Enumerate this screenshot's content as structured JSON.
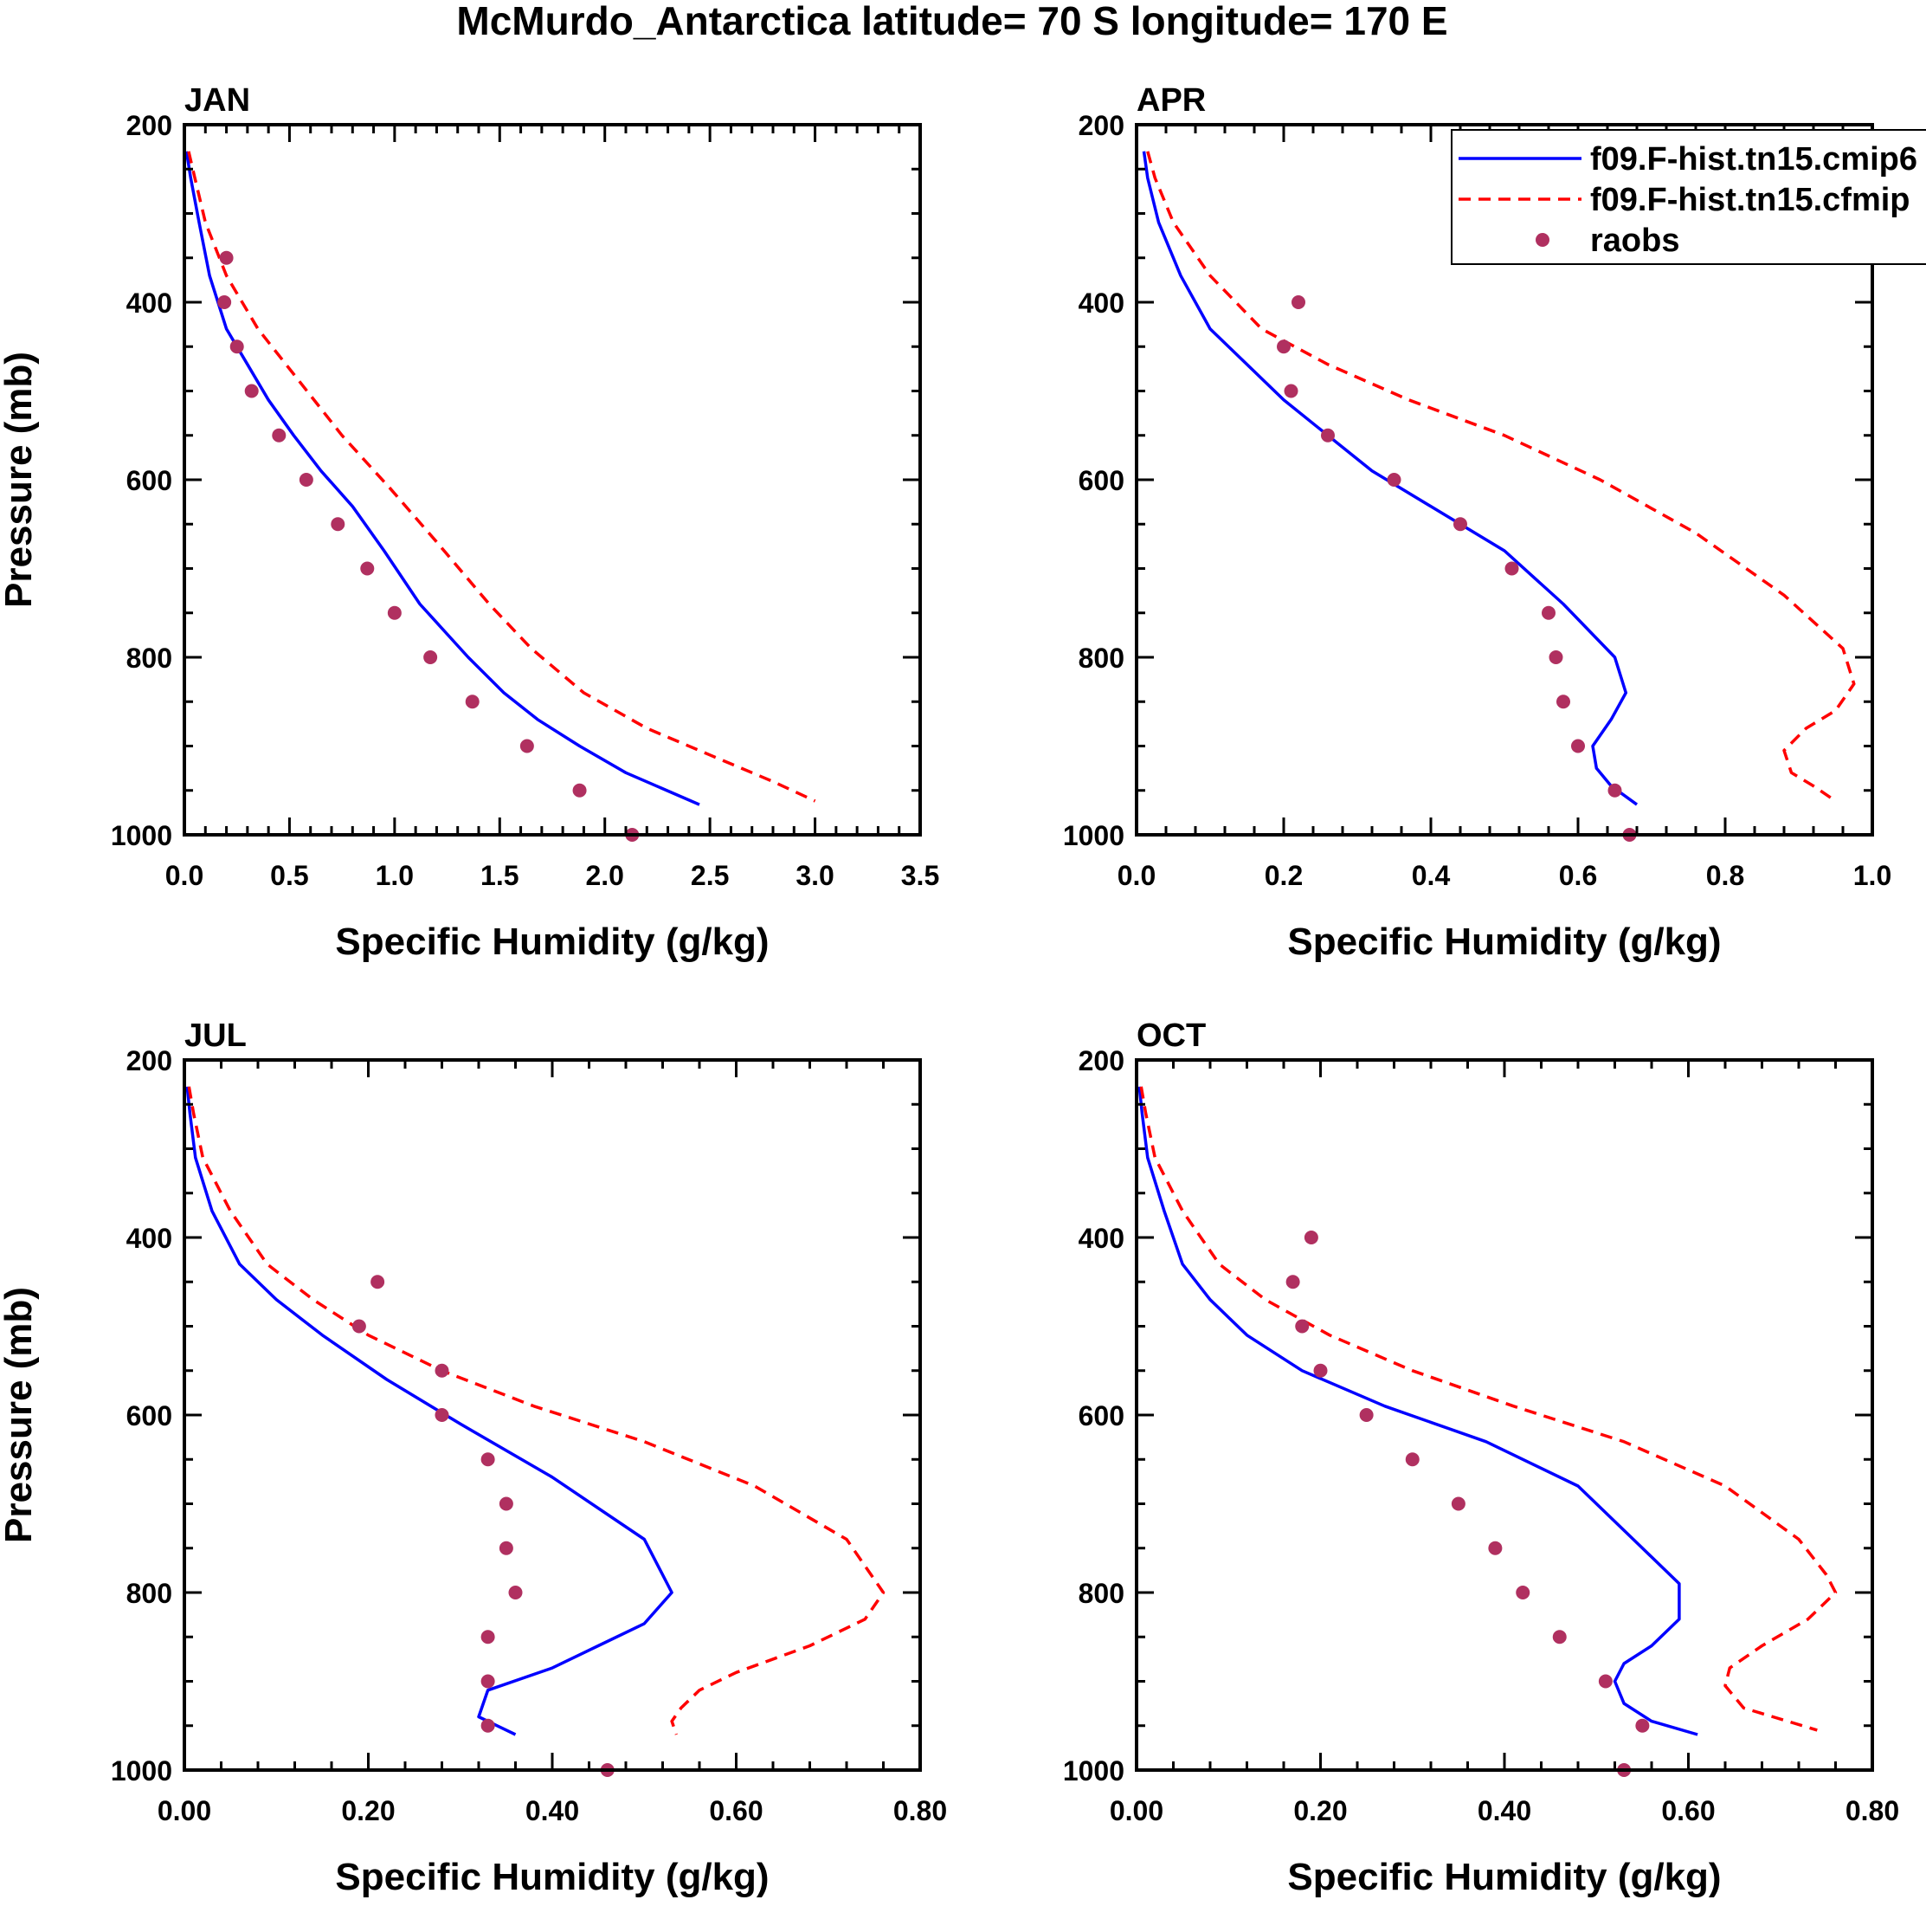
{
  "title": "McMurdo_Antarctica  latitude= 70 S longitude= 170 E",
  "colors": {
    "model_a": "#0000ff",
    "model_b": "#ff0000",
    "raobs": "#b03060",
    "frame": "#000000"
  },
  "legend": [
    {
      "label": "f09.F-hist.tn15.cmip6",
      "style": "solid-line",
      "color": "#0000ff"
    },
    {
      "label": "f09.F-hist.tn15.cfmip",
      "style": "dashed-line",
      "color": "#ff0000"
    },
    {
      "label": "raobs",
      "style": "marker",
      "color": "#b03060"
    }
  ],
  "chart_data": [
    {
      "type": "line",
      "panel": "JAN",
      "title": "JAN",
      "xlabel": "Specific Humidity (g/kg)",
      "ylabel": "Pressure (mb)",
      "xlim": [
        0,
        3.5
      ],
      "ylim": [
        200,
        1000
      ],
      "y_inverted": false,
      "xticks": [
        0,
        0.5,
        1.0,
        1.5,
        2.0,
        2.5,
        3.0,
        3.5
      ],
      "xtick_labels": [
        "0.0",
        "0.5",
        "1.0",
        "1.5",
        "2.0",
        "2.5",
        "3.0",
        "3.5"
      ],
      "yticks": [
        200,
        400,
        600,
        800,
        1000
      ],
      "ytick_labels": [
        "200",
        "400",
        "600",
        "800",
        "1000"
      ],
      "series": [
        {
          "name": "f09.F-hist.tn15.cmip6",
          "style": "solid",
          "x": [
            0.01,
            0.03,
            0.07,
            0.12,
            0.2,
            0.3,
            0.4,
            0.52,
            0.65,
            0.8,
            0.95,
            1.12,
            1.35,
            1.52,
            1.68,
            1.88,
            2.1,
            2.45
          ],
          "y": [
            230,
            260,
            310,
            370,
            430,
            470,
            510,
            550,
            590,
            630,
            680,
            740,
            800,
            840,
            870,
            900,
            930,
            966
          ]
        },
        {
          "name": "f09.F-hist.tn15.cfmip",
          "style": "dashed",
          "x": [
            0.02,
            0.05,
            0.1,
            0.2,
            0.35,
            0.55,
            0.75,
            0.98,
            1.2,
            1.45,
            1.65,
            1.9,
            2.2,
            2.5,
            2.8,
            3.0
          ],
          "y": [
            230,
            260,
            310,
            370,
            430,
            490,
            550,
            610,
            670,
            740,
            790,
            840,
            880,
            910,
            940,
            962
          ]
        },
        {
          "name": "raobs",
          "style": "marker",
          "x": [
            0.2,
            0.19,
            0.25,
            0.32,
            0.45,
            0.58,
            0.73,
            0.87,
            1.0,
            1.17,
            1.37,
            1.63,
            1.88,
            2.13
          ],
          "y": [
            350,
            400,
            450,
            500,
            550,
            600,
            650,
            700,
            750,
            800,
            850,
            900,
            950,
            1000
          ]
        }
      ]
    },
    {
      "type": "line",
      "panel": "APR",
      "title": "APR",
      "xlabel": "Specific Humidity (g/kg)",
      "ylabel": "",
      "xlim": [
        0,
        1.0
      ],
      "ylim": [
        200,
        1000
      ],
      "xticks": [
        0,
        0.2,
        0.4,
        0.6,
        0.8,
        1.0
      ],
      "xtick_labels": [
        "0.0",
        "0.2",
        "0.4",
        "0.6",
        "0.8",
        "1.0"
      ],
      "yticks": [
        200,
        400,
        600,
        800,
        1000
      ],
      "ytick_labels": [
        "200",
        "400",
        "600",
        "800",
        "1000"
      ],
      "series": [
        {
          "name": "f09.F-hist.tn15.cmip6",
          "style": "solid",
          "x": [
            0.01,
            0.015,
            0.03,
            0.06,
            0.1,
            0.15,
            0.2,
            0.26,
            0.32,
            0.4,
            0.5,
            0.58,
            0.65,
            0.665,
            0.645,
            0.62,
            0.625,
            0.645,
            0.68
          ],
          "y": [
            230,
            260,
            310,
            370,
            430,
            470,
            510,
            550,
            590,
            630,
            680,
            740,
            800,
            840,
            870,
            900,
            925,
            945,
            966
          ]
        },
        {
          "name": "f09.F-hist.tn15.cfmip",
          "style": "dashed",
          "x": [
            0.015,
            0.025,
            0.05,
            0.1,
            0.17,
            0.26,
            0.37,
            0.5,
            0.63,
            0.76,
            0.88,
            0.96,
            0.975,
            0.95,
            0.91,
            0.88,
            0.89,
            0.92,
            0.95
          ],
          "y": [
            230,
            260,
            310,
            370,
            430,
            470,
            510,
            550,
            600,
            660,
            730,
            790,
            830,
            860,
            880,
            905,
            930,
            945,
            962
          ]
        },
        {
          "name": "raobs",
          "style": "marker",
          "x": [
            0.22,
            0.2,
            0.21,
            0.26,
            0.35,
            0.44,
            0.51,
            0.56,
            0.57,
            0.58,
            0.6,
            0.65,
            0.67
          ],
          "y": [
            400,
            450,
            500,
            550,
            600,
            650,
            700,
            750,
            800,
            850,
            900,
            950,
            1000
          ]
        }
      ]
    },
    {
      "type": "line",
      "panel": "JUL",
      "title": "JUL",
      "xlabel": "Specific Humidity (g/kg)",
      "ylabel": "Pressure (mb)",
      "xlim": [
        0,
        0.8
      ],
      "ylim": [
        200,
        1000
      ],
      "xticks": [
        0,
        0.2,
        0.4,
        0.6,
        0.8
      ],
      "xtick_labels": [
        "0.00",
        "0.20",
        "0.40",
        "0.60",
        "0.80"
      ],
      "yticks": [
        200,
        400,
        600,
        800,
        1000
      ],
      "ytick_labels": [
        "200",
        "400",
        "600",
        "800",
        "1000"
      ],
      "series": [
        {
          "name": "f09.F-hist.tn15.cmip6",
          "style": "solid",
          "x": [
            0.003,
            0.006,
            0.012,
            0.03,
            0.06,
            0.1,
            0.15,
            0.22,
            0.3,
            0.4,
            0.5,
            0.53,
            0.5,
            0.45,
            0.4,
            0.33,
            0.32,
            0.34,
            0.36
          ],
          "y": [
            230,
            260,
            310,
            370,
            430,
            470,
            510,
            560,
            610,
            670,
            740,
            800,
            835,
            860,
            885,
            910,
            940,
            950,
            960
          ]
        },
        {
          "name": "f09.F-hist.tn15.cfmip",
          "style": "dashed",
          "x": [
            0.005,
            0.01,
            0.02,
            0.05,
            0.09,
            0.14,
            0.2,
            0.28,
            0.38,
            0.5,
            0.62,
            0.72,
            0.76,
            0.74,
            0.68,
            0.6,
            0.56,
            0.54,
            0.53,
            0.535
          ],
          "y": [
            230,
            260,
            310,
            370,
            430,
            470,
            510,
            550,
            590,
            630,
            680,
            740,
            800,
            830,
            860,
            890,
            910,
            930,
            945,
            960
          ]
        },
        {
          "name": "raobs",
          "style": "marker",
          "x": [
            0.21,
            0.19,
            0.28,
            0.28,
            0.33,
            0.35,
            0.35,
            0.36,
            0.33,
            0.33,
            0.33,
            0.46
          ],
          "y": [
            450,
            500,
            550,
            600,
            650,
            700,
            750,
            800,
            850,
            900,
            950,
            1000
          ]
        }
      ]
    },
    {
      "type": "line",
      "panel": "OCT",
      "title": "OCT",
      "xlabel": "Specific Humidity (g/kg)",
      "ylabel": "",
      "xlim": [
        0,
        0.8
      ],
      "ylim": [
        200,
        1000
      ],
      "xticks": [
        0,
        0.2,
        0.4,
        0.6,
        0.8
      ],
      "xtick_labels": [
        "0.00",
        "0.20",
        "0.40",
        "0.60",
        "0.80"
      ],
      "yticks": [
        200,
        400,
        600,
        800,
        1000
      ],
      "ytick_labels": [
        "200",
        "400",
        "600",
        "800",
        "1000"
      ],
      "series": [
        {
          "name": "f09.F-hist.tn15.cmip6",
          "style": "solid",
          "x": [
            0.003,
            0.006,
            0.012,
            0.03,
            0.05,
            0.08,
            0.12,
            0.18,
            0.27,
            0.38,
            0.48,
            0.54,
            0.59,
            0.59,
            0.56,
            0.53,
            0.52,
            0.53,
            0.56,
            0.61
          ],
          "y": [
            230,
            260,
            310,
            370,
            430,
            470,
            510,
            550,
            590,
            630,
            680,
            740,
            790,
            830,
            860,
            880,
            900,
            925,
            945,
            960
          ]
        },
        {
          "name": "f09.F-hist.tn15.cfmip",
          "style": "dashed",
          "x": [
            0.005,
            0.01,
            0.02,
            0.05,
            0.09,
            0.14,
            0.21,
            0.3,
            0.41,
            0.53,
            0.64,
            0.72,
            0.75,
            0.76,
            0.73,
            0.68,
            0.645,
            0.64,
            0.66,
            0.74
          ],
          "y": [
            230,
            260,
            310,
            370,
            430,
            470,
            510,
            550,
            590,
            630,
            680,
            740,
            780,
            800,
            830,
            860,
            885,
            905,
            930,
            955
          ]
        },
        {
          "name": "raobs",
          "style": "marker",
          "x": [
            0.19,
            0.17,
            0.18,
            0.2,
            0.25,
            0.3,
            0.35,
            0.39,
            0.42,
            0.46,
            0.51,
            0.55,
            0.53
          ],
          "y": [
            400,
            450,
            500,
            550,
            600,
            650,
            700,
            750,
            800,
            850,
            900,
            950,
            1000
          ]
        }
      ]
    }
  ]
}
